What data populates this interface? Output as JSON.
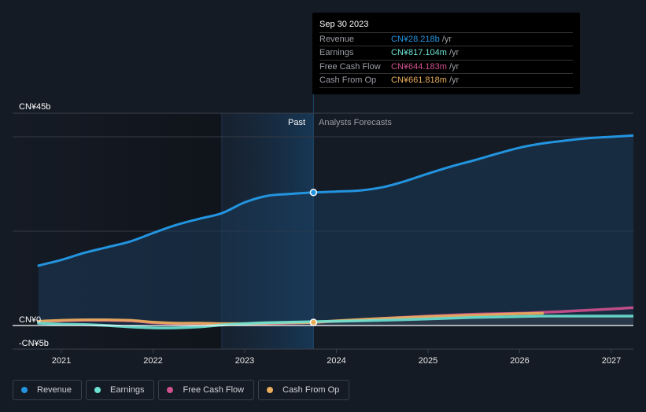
{
  "tooltip": {
    "date": "Sep 30 2023",
    "rows": [
      {
        "label": "Revenue",
        "value": "CN¥28.218b",
        "unit": "/yr",
        "color": "#2394df"
      },
      {
        "label": "Earnings",
        "value": "CN¥817.104m",
        "unit": "/yr",
        "color": "#6ce2d3"
      },
      {
        "label": "Free Cash Flow",
        "value": "CN¥644.183m",
        "unit": "/yr",
        "color": "#d0518f"
      },
      {
        "label": "Cash From Op",
        "value": "CN¥661.818m",
        "unit": "/yr",
        "color": "#e8ae5c"
      }
    ]
  },
  "sections": {
    "past": "Past",
    "forecast": "Analysts Forecasts"
  },
  "legend": [
    {
      "label": "Revenue",
      "color": "#2394df"
    },
    {
      "label": "Earnings",
      "color": "#6ce2d3"
    },
    {
      "label": "Free Cash Flow",
      "color": "#d0518f"
    },
    {
      "label": "Cash From Op",
      "color": "#e8ae5c"
    }
  ],
  "chart_data": {
    "type": "area",
    "title": "",
    "xlabel": "",
    "ylabel": "",
    "y_tick_labels": [
      "CN¥45b",
      "CN¥0",
      "-CN¥5b"
    ],
    "y_ticks": [
      45,
      0,
      -5
    ],
    "ylim": [
      -5,
      45
    ],
    "xlim": [
      2020.55,
      2027.25
    ],
    "x_ticks": [
      2021,
      2022,
      2023,
      2024,
      2025,
      2026,
      2027
    ],
    "x_tick_labels": [
      "2021",
      "2022",
      "2023",
      "2024",
      "2025",
      "2026",
      "2027"
    ],
    "gridlines_y": [
      45,
      40,
      20,
      0
    ],
    "past_region": [
      2022.75,
      2023.75
    ],
    "highlight_x": 2023.75,
    "units": "CN¥ billions",
    "legend_position": "bottom-left",
    "series": [
      {
        "name": "Revenue",
        "color": "#2394df",
        "points": [
          [
            2020.75,
            12.7
          ],
          [
            2021.0,
            13.9
          ],
          [
            2021.25,
            15.4
          ],
          [
            2021.5,
            16.6
          ],
          [
            2021.75,
            17.8
          ],
          [
            2022.0,
            19.6
          ],
          [
            2022.25,
            21.3
          ],
          [
            2022.5,
            22.6
          ],
          [
            2022.75,
            23.8
          ],
          [
            2023.0,
            26.1
          ],
          [
            2023.25,
            27.5
          ],
          [
            2023.5,
            27.9
          ],
          [
            2023.75,
            28.2
          ],
          [
            2024.0,
            28.4
          ],
          [
            2024.25,
            28.6
          ],
          [
            2024.5,
            29.3
          ],
          [
            2024.75,
            30.6
          ],
          [
            2025.0,
            32.2
          ],
          [
            2025.25,
            33.7
          ],
          [
            2025.5,
            35.0
          ],
          [
            2025.75,
            36.4
          ],
          [
            2026.0,
            37.7
          ],
          [
            2026.25,
            38.6
          ],
          [
            2026.5,
            39.2
          ],
          [
            2026.75,
            39.7
          ],
          [
            2027.0,
            40.0
          ],
          [
            2027.25,
            40.3
          ]
        ]
      },
      {
        "name": "Earnings",
        "color": "#6ce2d3",
        "points": [
          [
            2020.75,
            0.5
          ],
          [
            2021.0,
            0.3
          ],
          [
            2021.25,
            0.2
          ],
          [
            2021.5,
            0.0
          ],
          [
            2021.75,
            -0.3
          ],
          [
            2022.0,
            -0.5
          ],
          [
            2022.25,
            -0.5
          ],
          [
            2022.5,
            -0.3
          ],
          [
            2022.75,
            0.1
          ],
          [
            2023.0,
            0.4
          ],
          [
            2023.25,
            0.6
          ],
          [
            2023.5,
            0.7
          ],
          [
            2023.75,
            0.82
          ],
          [
            2024.0,
            0.9
          ],
          [
            2024.5,
            1.1
          ],
          [
            2025.0,
            1.4
          ],
          [
            2025.5,
            1.7
          ],
          [
            2026.0,
            1.9
          ],
          [
            2026.25,
            2.0
          ],
          [
            2026.5,
            2.0
          ],
          [
            2027.0,
            2.0
          ],
          [
            2027.25,
            2.0
          ]
        ]
      },
      {
        "name": "Free Cash Flow",
        "color": "#d0518f",
        "points": [
          [
            2020.75,
            0.8
          ],
          [
            2021.0,
            1.0
          ],
          [
            2021.25,
            1.1
          ],
          [
            2021.5,
            1.1
          ],
          [
            2021.75,
            1.0
          ],
          [
            2022.0,
            0.6
          ],
          [
            2022.25,
            0.4
          ],
          [
            2022.5,
            0.4
          ],
          [
            2022.75,
            0.3
          ],
          [
            2023.0,
            0.3
          ],
          [
            2023.25,
            0.4
          ],
          [
            2023.5,
            0.5
          ],
          [
            2023.75,
            0.64
          ],
          [
            2024.0,
            0.9
          ],
          [
            2024.5,
            1.5
          ],
          [
            2025.0,
            2.0
          ],
          [
            2025.5,
            2.4
          ],
          [
            2026.0,
            2.6
          ],
          [
            2026.25,
            2.8
          ],
          [
            2026.5,
            3.0
          ],
          [
            2027.0,
            3.5
          ],
          [
            2027.25,
            3.8
          ]
        ]
      },
      {
        "name": "Cash From Op",
        "color": "#e8ae5c",
        "points": [
          [
            2020.75,
            0.9
          ],
          [
            2021.0,
            1.1
          ],
          [
            2021.25,
            1.2
          ],
          [
            2021.5,
            1.2
          ],
          [
            2021.75,
            1.1
          ],
          [
            2022.0,
            0.7
          ],
          [
            2022.25,
            0.5
          ],
          [
            2022.5,
            0.5
          ],
          [
            2022.75,
            0.4
          ],
          [
            2023.0,
            0.4
          ],
          [
            2023.25,
            0.5
          ],
          [
            2023.5,
            0.6
          ],
          [
            2023.75,
            0.66
          ],
          [
            2024.0,
            1.0
          ],
          [
            2024.5,
            1.5
          ],
          [
            2025.0,
            1.9
          ],
          [
            2025.5,
            2.2
          ],
          [
            2026.0,
            2.5
          ],
          [
            2026.25,
            2.6
          ]
        ]
      }
    ]
  }
}
